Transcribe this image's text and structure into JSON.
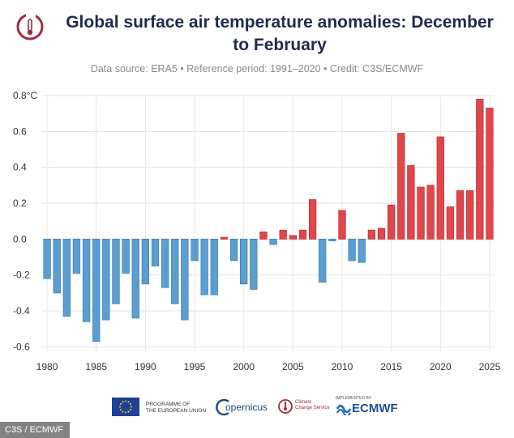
{
  "header": {
    "title": "Global surface air temperature anomalies: December to February",
    "subtitle": "Data source: ERA5 • Reference period: 1991–2020 • Credit: C3S/ECMWF"
  },
  "chart_data": {
    "type": "bar",
    "title": "Global surface air temperature anomalies: December to February",
    "xlabel": "",
    "ylabel": "",
    "unit": "°C",
    "ylim": [
      -0.63,
      0.8
    ],
    "yticks": [
      0.8,
      0.6,
      0.4,
      0.2,
      0.0,
      -0.2,
      -0.4,
      -0.6
    ],
    "ytick_labels": [
      "0.8°C",
      "0.6",
      "0.4",
      "0.2",
      "0.0",
      "-0.2",
      "-0.4",
      "-0.6"
    ],
    "xticks": [
      1980,
      1985,
      1990,
      1995,
      2000,
      2005,
      2010,
      2015,
      2020,
      2025
    ],
    "grid": true,
    "positive_color": "#e0474c",
    "negative_color": "#5b9fd1",
    "categories": [
      1980,
      1981,
      1982,
      1983,
      1984,
      1985,
      1986,
      1987,
      1988,
      1989,
      1990,
      1991,
      1992,
      1993,
      1994,
      1995,
      1996,
      1997,
      1998,
      1999,
      2000,
      2001,
      2002,
      2003,
      2004,
      2005,
      2006,
      2007,
      2008,
      2009,
      2010,
      2011,
      2012,
      2013,
      2014,
      2015,
      2016,
      2017,
      2018,
      2019,
      2020,
      2021,
      2022,
      2023,
      2024,
      2025
    ],
    "values": [
      -0.22,
      -0.3,
      -0.43,
      -0.19,
      -0.46,
      -0.57,
      -0.45,
      -0.36,
      -0.19,
      -0.44,
      -0.25,
      -0.15,
      -0.27,
      -0.36,
      -0.45,
      -0.12,
      -0.31,
      -0.31,
      0.01,
      -0.12,
      -0.25,
      -0.28,
      0.04,
      -0.03,
      0.05,
      0.02,
      0.05,
      0.22,
      -0.24,
      -0.01,
      0.16,
      -0.12,
      -0.13,
      0.05,
      0.06,
      0.19,
      0.59,
      0.41,
      0.29,
      0.3,
      0.57,
      0.18,
      0.27,
      0.27,
      0.78,
      0.73
    ]
  },
  "footer": {
    "eu_label_line1": "PROGRAMME OF",
    "eu_label_line2": "THE EUROPEAN UNION",
    "copernicus": "opernicus",
    "c3s_line1": "Climate",
    "c3s_line2": "Change Service",
    "implemented_by": "IMPLEMENTED BY",
    "ecmwf": "ECMWF"
  },
  "watermark": "C3S / ECMWF"
}
